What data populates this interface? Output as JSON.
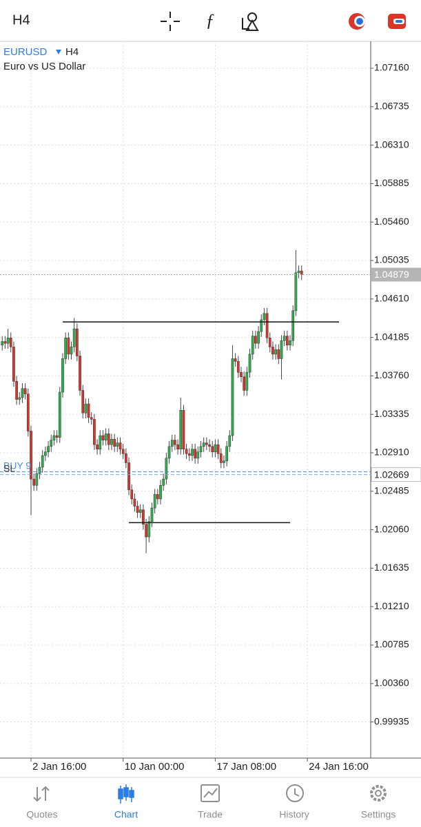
{
  "chart_data": {
    "type": "candlestick",
    "symbol": "EURUSD",
    "timeframe": "H4",
    "description": "Euro vs US Dollar",
    "up_color": "#2fae4e",
    "down_color": "#d9352b",
    "grid": true,
    "xlim": [
      -0.77,
      128
    ],
    "xticks": [
      {
        "value": 10,
        "label": "2 Jan 16:00"
      },
      {
        "value": 42,
        "label": "10 Jan 00:00"
      },
      {
        "value": 74,
        "label": "17 Jan 08:00"
      },
      {
        "value": 106,
        "label": "24 Jan 16:00"
      }
    ],
    "ylim": [
      0.99536,
      1.07457
    ],
    "yticks": [
      {
        "value": 1.0716,
        "label": "1.07160"
      },
      1.06735,
      {
        "value": 1.0631,
        "label": "1.06310"
      },
      1.05885,
      {
        "value": 1.0546,
        "label": "1.05460"
      },
      1.05035,
      {
        "value": 1.0461,
        "label": "1.04610"
      },
      1.04185,
      {
        "value": 1.0376,
        "label": "1.03760"
      },
      1.03335,
      {
        "value": 1.0291,
        "label": "1.02910"
      },
      1.02485,
      {
        "value": 1.0206,
        "label": "1.02060"
      },
      1.01635,
      {
        "value": 1.0121,
        "label": "1.01210"
      },
      1.00785,
      {
        "value": 1.0036,
        "label": "1.00360"
      },
      0.99935
    ],
    "open": [
      1.041,
      1.0414,
      1.0412,
      1.0418,
      1.0408,
      1.037,
      1.035,
      1.0352,
      1.0362,
      1.0356,
      1.0315,
      1.0262,
      1.0255,
      1.0268,
      1.0275,
      1.0288,
      1.0292,
      1.0298,
      1.0305,
      1.031,
      1.0308,
      1.0358,
      1.0395,
      1.0418,
      1.04,
      1.0408,
      1.0428,
      1.0398,
      1.036,
      1.0335,
      1.0345,
      1.033,
      1.0328,
      1.03,
      1.0295,
      1.031,
      1.0305,
      1.0312,
      1.03,
      1.0306,
      1.0298,
      1.0302,
      1.0295,
      1.029,
      1.028,
      1.025,
      1.024,
      1.0232,
      1.0225,
      1.0228,
      1.0212,
      1.0198,
      1.0215,
      1.023,
      1.0245,
      1.024,
      1.0255,
      1.0262,
      1.0285,
      1.0298,
      1.0305,
      1.03,
      1.0295,
      1.0338,
      1.0295,
      1.029,
      1.0288,
      1.0295,
      1.0285,
      1.0292,
      1.0298,
      1.0302,
      1.03,
      1.0298,
      1.0292,
      1.03,
      1.029,
      1.028,
      1.0282,
      1.0298,
      1.031,
      1.0395,
      1.0392,
      1.038,
      1.0375,
      1.036,
      1.038,
      1.04,
      1.042,
      1.0412,
      1.0425,
      1.0438,
      1.0445,
      1.0418,
      1.0408,
      1.04,
      1.0405,
      1.0395,
      1.0415,
      1.042,
      1.041,
      1.0415,
      1.0448,
      1.049,
      1.0492
    ],
    "high": [
      1.042,
      1.042,
      1.0428,
      1.0424,
      1.0414,
      1.0376,
      1.0358,
      1.0368,
      1.0368,
      1.0362,
      1.0321,
      1.0268,
      1.0274,
      1.0281,
      1.0294,
      1.0298,
      1.0304,
      1.0311,
      1.0316,
      1.0316,
      1.0364,
      1.0401,
      1.0424,
      1.0424,
      1.0414,
      1.044,
      1.0434,
      1.0404,
      1.0366,
      1.0351,
      1.0351,
      1.0336,
      1.0334,
      1.0306,
      1.0316,
      1.0316,
      1.0318,
      1.0318,
      1.0312,
      1.0312,
      1.0308,
      1.0308,
      1.0301,
      1.0296,
      1.0286,
      1.0256,
      1.0246,
      1.0238,
      1.0234,
      1.0234,
      1.0218,
      1.0221,
      1.0236,
      1.0251,
      1.0251,
      1.0261,
      1.0268,
      1.0291,
      1.0304,
      1.0311,
      1.0311,
      1.0306,
      1.0352,
      1.0344,
      1.0301,
      1.0296,
      1.0301,
      1.0301,
      1.0298,
      1.0304,
      1.0308,
      1.0308,
      1.0306,
      1.0304,
      1.0306,
      1.0306,
      1.0296,
      1.0288,
      1.0304,
      1.0316,
      1.041,
      1.0401,
      1.0398,
      1.0386,
      1.0381,
      1.0386,
      1.0406,
      1.0426,
      1.0426,
      1.0431,
      1.0444,
      1.0451,
      1.0451,
      1.0424,
      1.0414,
      1.0411,
      1.0411,
      1.0421,
      1.0426,
      1.0426,
      1.0421,
      1.0454,
      1.0515,
      1.0498,
      1.0498
    ],
    "low": [
      1.0404,
      1.0406,
      1.0406,
      1.0402,
      1.0364,
      1.0344,
      1.0344,
      1.0346,
      1.035,
      1.0309,
      1.0222,
      1.0249,
      1.0249,
      1.0262,
      1.0269,
      1.0282,
      1.0286,
      1.0292,
      1.0299,
      1.0302,
      1.0302,
      1.0352,
      1.0389,
      1.0394,
      1.0394,
      1.0402,
      1.0392,
      1.0354,
      1.0329,
      1.0329,
      1.0324,
      1.0322,
      1.0294,
      1.0289,
      1.0289,
      1.0299,
      1.0299,
      1.0294,
      1.0294,
      1.0292,
      1.0292,
      1.0289,
      1.0284,
      1.0274,
      1.0244,
      1.0234,
      1.0226,
      1.0219,
      1.0219,
      1.0206,
      1.018,
      1.0192,
      1.0209,
      1.0224,
      1.0234,
      1.0234,
      1.0249,
      1.0256,
      1.0279,
      1.0292,
      1.0294,
      1.0289,
      1.0289,
      1.0289,
      1.0284,
      1.0282,
      1.0282,
      1.0279,
      1.0279,
      1.0286,
      1.0292,
      1.0294,
      1.0292,
      1.0286,
      1.0286,
      1.0284,
      1.0274,
      1.0274,
      1.0276,
      1.0292,
      1.0304,
      1.0386,
      1.0374,
      1.0369,
      1.0354,
      1.0354,
      1.0374,
      1.0394,
      1.0406,
      1.0406,
      1.0419,
      1.0432,
      1.0412,
      1.0402,
      1.0394,
      1.0394,
      1.0389,
      1.0372,
      1.0409,
      1.0404,
      1.0404,
      1.0409,
      1.0442,
      1.0484,
      1.0482
    ],
    "close": [
      1.0414,
      1.0412,
      1.0418,
      1.0408,
      1.037,
      1.035,
      1.0352,
      1.0362,
      1.0356,
      1.0315,
      1.0262,
      1.0255,
      1.0268,
      1.0275,
      1.0288,
      1.0292,
      1.0298,
      1.0305,
      1.031,
      1.0308,
      1.0358,
      1.0395,
      1.0418,
      1.04,
      1.0408,
      1.0428,
      1.0398,
      1.036,
      1.0335,
      1.0345,
      1.033,
      1.0328,
      1.03,
      1.0295,
      1.031,
      1.0305,
      1.0312,
      1.03,
      1.0306,
      1.0298,
      1.0302,
      1.0295,
      1.029,
      1.028,
      1.025,
      1.024,
      1.0232,
      1.0225,
      1.0228,
      1.0212,
      1.0198,
      1.0215,
      1.023,
      1.0245,
      1.024,
      1.0255,
      1.0262,
      1.0285,
      1.0298,
      1.0305,
      1.03,
      1.0295,
      1.0338,
      1.0295,
      1.029,
      1.0288,
      1.0295,
      1.0285,
      1.0292,
      1.0298,
      1.0302,
      1.03,
      1.0298,
      1.0292,
      1.03,
      1.029,
      1.028,
      1.0282,
      1.0298,
      1.031,
      1.0395,
      1.0392,
      1.038,
      1.0375,
      1.036,
      1.038,
      1.04,
      1.042,
      1.0412,
      1.0425,
      1.0438,
      1.0445,
      1.0418,
      1.0408,
      1.04,
      1.0405,
      1.0395,
      1.0415,
      1.042,
      1.041,
      1.0415,
      1.0448,
      1.049,
      1.0492,
      1.0488
    ],
    "current_price": 1.04879,
    "hlines": [
      {
        "price": 1.04356,
        "from": 21,
        "to": 117
      },
      {
        "price": 1.02138,
        "from": 44,
        "to": 100
      }
    ],
    "orders": [
      {
        "label": "BUY 9",
        "price": 1.027,
        "color": "#4a8fd8"
      },
      {
        "label": "SL",
        "price": 1.02669,
        "color": "#8aa6c8"
      }
    ]
  },
  "nav": {
    "items": [
      {
        "label": "Quotes"
      },
      {
        "label": "Chart",
        "active": true
      },
      {
        "label": "Trade"
      },
      {
        "label": "History"
      },
      {
        "label": "Settings"
      }
    ]
  }
}
